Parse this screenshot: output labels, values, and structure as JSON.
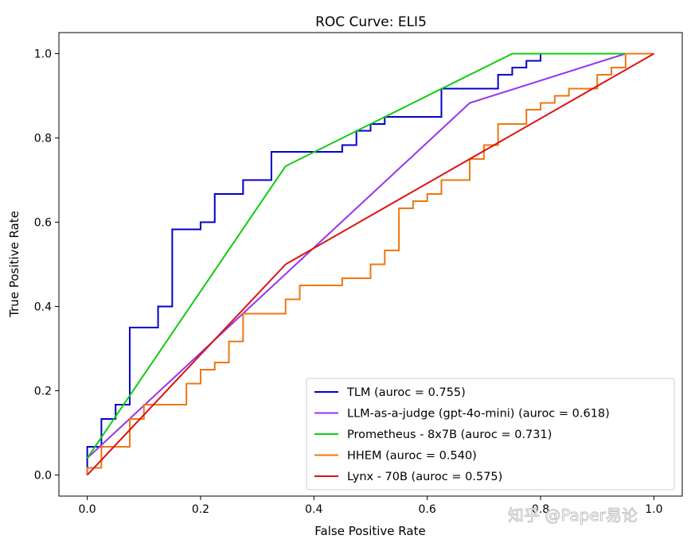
{
  "chart_data": {
    "type": "line",
    "title": "ROC Curve: ELI5",
    "xlabel": "False Positive Rate",
    "ylabel": "True Positive Rate",
    "xlim": [
      -0.05,
      1.05
    ],
    "ylim": [
      -0.05,
      1.05
    ],
    "xticks": [
      "0.0",
      "0.2",
      "0.4",
      "0.6",
      "0.8",
      "1.0"
    ],
    "yticks": [
      "0.0",
      "0.2",
      "0.4",
      "0.6",
      "0.8",
      "1.0"
    ],
    "xtick_values": [
      0.0,
      0.2,
      0.4,
      0.6,
      0.8,
      1.0
    ],
    "ytick_values": [
      0.0,
      0.2,
      0.4,
      0.6,
      0.8,
      1.0
    ],
    "grid": false,
    "legend_position": "lower-right",
    "series": [
      {
        "name": "TLM (auroc = 0.755)",
        "color": "#0000cc",
        "x": [
          0,
          0,
          0.025,
          0.025,
          0.05,
          0.05,
          0.075,
          0.075,
          0.125,
          0.125,
          0.15,
          0.15,
          0.2,
          0.2,
          0.225,
          0.225,
          0.275,
          0.275,
          0.325,
          0.325,
          0.45,
          0.45,
          0.475,
          0.475,
          0.5,
          0.5,
          0.525,
          0.525,
          0.625,
          0.625,
          0.725,
          0.725,
          0.75,
          0.75,
          0.775,
          0.775,
          0.8,
          0.8,
          1.0
        ],
        "y": [
          0,
          0.067,
          0.067,
          0.133,
          0.133,
          0.167,
          0.167,
          0.35,
          0.35,
          0.4,
          0.4,
          0.583,
          0.583,
          0.6,
          0.6,
          0.667,
          0.667,
          0.7,
          0.7,
          0.767,
          0.767,
          0.783,
          0.783,
          0.817,
          0.817,
          0.833,
          0.833,
          0.85,
          0.85,
          0.917,
          0.917,
          0.95,
          0.95,
          0.967,
          0.967,
          0.983,
          0.983,
          1.0,
          1.0
        ]
      },
      {
        "name": "LLM-as-a-judge (gpt-4o-mini) (auroc = 0.618)",
        "color": "#9933ee",
        "x": [
          0,
          0.675,
          0.95,
          1.0
        ],
        "y": [
          0.04,
          0.883,
          1.0,
          1.0
        ]
      },
      {
        "name": "Prometheus - 8x7B (auroc = 0.731)",
        "color": "#11cc11",
        "x": [
          0,
          0.35,
          0.75,
          1.0
        ],
        "y": [
          0.04,
          0.733,
          1.0,
          1.0
        ]
      },
      {
        "name": "HHEM (auroc = 0.540)",
        "color": "#ee7711",
        "x": [
          0,
          0,
          0.025,
          0.025,
          0.075,
          0.075,
          0.1,
          0.1,
          0.175,
          0.175,
          0.2,
          0.2,
          0.225,
          0.225,
          0.25,
          0.25,
          0.275,
          0.275,
          0.35,
          0.35,
          0.375,
          0.375,
          0.45,
          0.45,
          0.5,
          0.5,
          0.525,
          0.525,
          0.55,
          0.55,
          0.575,
          0.575,
          0.6,
          0.6,
          0.625,
          0.625,
          0.675,
          0.675,
          0.7,
          0.7,
          0.725,
          0.725,
          0.775,
          0.775,
          0.8,
          0.8,
          0.825,
          0.825,
          0.85,
          0.85,
          0.9,
          0.9,
          0.925,
          0.925,
          0.95,
          0.95,
          1.0
        ],
        "y": [
          0,
          0.017,
          0.017,
          0.067,
          0.067,
          0.133,
          0.133,
          0.167,
          0.167,
          0.217,
          0.217,
          0.25,
          0.25,
          0.267,
          0.267,
          0.317,
          0.317,
          0.383,
          0.383,
          0.417,
          0.417,
          0.45,
          0.45,
          0.467,
          0.467,
          0.5,
          0.5,
          0.533,
          0.533,
          0.633,
          0.633,
          0.65,
          0.65,
          0.667,
          0.667,
          0.7,
          0.7,
          0.75,
          0.75,
          0.783,
          0.783,
          0.833,
          0.833,
          0.867,
          0.867,
          0.883,
          0.883,
          0.9,
          0.9,
          0.917,
          0.917,
          0.95,
          0.95,
          0.967,
          0.967,
          1.0,
          1.0
        ]
      },
      {
        "name": "Lynx - 70B (auroc = 0.575)",
        "color": "#dd1111",
        "x": [
          0,
          0.35,
          1.0
        ],
        "y": [
          0,
          0.5,
          1.0
        ]
      }
    ]
  },
  "watermark": "知乎 @Paper易论"
}
